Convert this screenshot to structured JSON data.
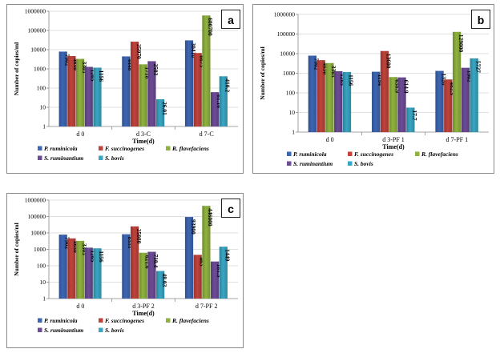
{
  "legend": [
    {
      "name": "P. ruminicola",
      "color": "#3d66b4"
    },
    {
      "name": "F. succinogenes",
      "color": "#c0433c"
    },
    {
      "name": "R. flavefaciens",
      "color": "#8fb23e"
    },
    {
      "name": "S. ruminantium",
      "color": "#6d4c96"
    },
    {
      "name": "S. bovis",
      "color": "#39a6c3"
    }
  ],
  "chart_data": [
    {
      "type": "bar",
      "panel_label": "a",
      "title": "",
      "xlabel": "Time(d)",
      "ylabel": "Number of copies/ml",
      "yscale": "log",
      "ylim": [
        1,
        1000000
      ],
      "yticks": [
        "1",
        "10",
        "100",
        "1000",
        "10000",
        "100000",
        "1000000"
      ],
      "categories": [
        "d 0",
        "d 3-C",
        "d 7-C"
      ],
      "series": [
        {
          "name": "P. ruminicola",
          "values": [
            7902,
            4448,
            30410
          ],
          "labels": [
            "7902",
            "4448",
            "30410"
          ]
        },
        {
          "name": "F. succinogenes",
          "values": [
            4650,
            25970,
            6673
          ],
          "labels": [
            "4650",
            "25970",
            "6673"
          ]
        },
        {
          "name": "R. flavefaciens",
          "values": [
            3303,
            1718,
            600700
          ],
          "labels": [
            "3303",
            "1718",
            "600700"
          ]
        },
        {
          "name": "S. ruminantium",
          "values": [
            1265,
            2503,
            61.16
          ],
          "labels": [
            "1265",
            "2503",
            "61.16"
          ]
        },
        {
          "name": "S. bovis",
          "values": [
            1156,
            26.01,
            410.2
          ],
          "labels": [
            "1156",
            "26.01",
            "410.2"
          ]
        }
      ]
    },
    {
      "type": "bar",
      "panel_label": "b",
      "title": "",
      "xlabel": "Time(d)",
      "ylabel": "Number of copies/ml",
      "yscale": "log",
      "ylim": [
        1,
        1000000
      ],
      "yticks": [
        "1",
        "10",
        "100",
        "1000",
        "10000",
        "100000",
        "1000000"
      ],
      "categories": [
        "d 0",
        "d 3-PF 1",
        "d 7-PF 1"
      ],
      "series": [
        {
          "name": "P. ruminicola",
          "values": [
            7902,
            1194,
            1320
          ],
          "labels": [
            "7902",
            "1194",
            "1320"
          ]
        },
        {
          "name": "F. succinogenes",
          "values": [
            4650,
            13600,
            482.5
          ],
          "labels": [
            "4650",
            "13600",
            "482.5"
          ]
        },
        {
          "name": "R. flavefaciens",
          "values": [
            3303,
            638.9,
            129000
          ],
          "labels": [
            "3303",
            "638.9",
            "129000"
          ]
        },
        {
          "name": "S. ruminantium",
          "values": [
            1265,
            614.9,
            1902
          ],
          "labels": [
            "1265",
            "614.9",
            "1902"
          ]
        },
        {
          "name": "S. bovis",
          "values": [
            1156,
            17.7,
            5727
          ],
          "labels": [
            "1156",
            "17.7",
            "5727"
          ]
        }
      ]
    },
    {
      "type": "bar",
      "panel_label": "c",
      "title": "",
      "xlabel": "Time(d)",
      "ylabel": "Number of copies/ml",
      "yscale": "log",
      "ylim": [
        1,
        1000000
      ],
      "yticks": [
        "1",
        "10",
        "100",
        "1000",
        "10000",
        "100000",
        "1000000"
      ],
      "categories": [
        "d 0",
        "d 3-PF 2",
        "d 7-PF 2"
      ],
      "series": [
        {
          "name": "P. ruminicola",
          "values": [
            7902,
            8331,
            93900
          ],
          "labels": [
            "7902",
            "8331",
            "93900"
          ]
        },
        {
          "name": "F. succinogenes",
          "values": [
            4650,
            25080,
            463
          ],
          "labels": [
            "4650",
            "25080",
            "463"
          ]
        },
        {
          "name": "R. flavefaciens",
          "values": [
            3303,
            621.6,
            446000
          ],
          "labels": [
            "3303",
            "621.6",
            "446000"
          ]
        },
        {
          "name": "S. ruminantium",
          "values": [
            1265,
            710.4,
            181.5
          ],
          "labels": [
            "1265",
            "710.4",
            "181.5"
          ]
        },
        {
          "name": "S. bovis",
          "values": [
            1156,
            48.03,
            1449
          ],
          "labels": [
            "1156",
            "48.03",
            "1449"
          ]
        }
      ]
    }
  ]
}
